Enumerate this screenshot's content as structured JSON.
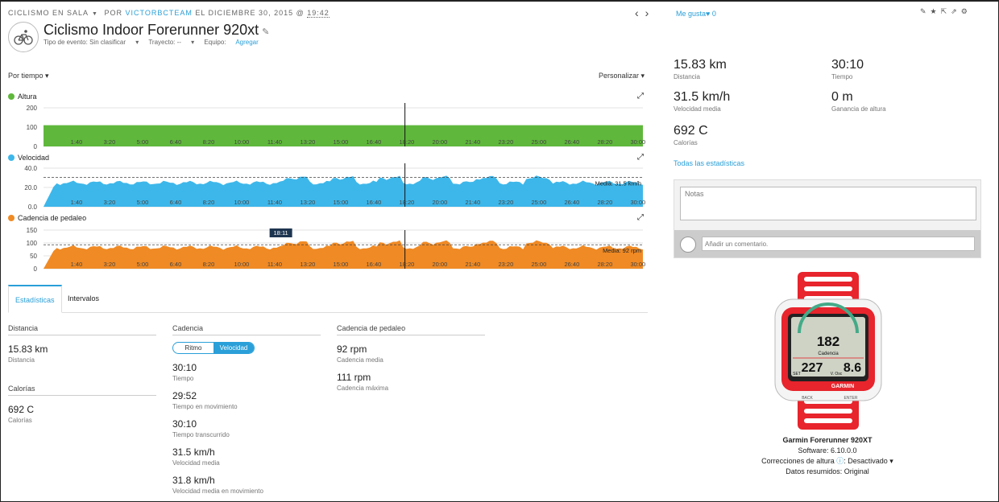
{
  "header": {
    "activity_type": "CICLISMO EN SALA",
    "by": "POR",
    "user": "VICTORBCTEAM",
    "date_text": "EL DICIEMBRE 30, 2015 @",
    "time": "19:42",
    "title": "Ciclismo Indoor Forerunner 920xt",
    "event_type": "Tipo de evento: Sin clasificar",
    "route": "Trayecto: --",
    "equipment_label": "Equipo:",
    "equipment_link": "Agregar"
  },
  "charts_controls": {
    "por_tiempo": "Por tiempo",
    "personalizar": "Personalizar"
  },
  "charts": {
    "time_labels": [
      "1:40",
      "3:20",
      "5:00",
      "6:40",
      "8:20",
      "10:00",
      "11:40",
      "13:20",
      "15:00",
      "16:40",
      "18:20",
      "20:00",
      "21:40",
      "23:20",
      "25:00",
      "26:40",
      "28:20",
      "30:00"
    ],
    "cursor_time": "18:11",
    "altura": {
      "label": "Altura",
      "color": "#5fb83b",
      "yticks": [
        "200",
        "100",
        "0"
      ]
    },
    "velocidad": {
      "label": "Velocidad",
      "color": "#3db7ea",
      "yticks": [
        "40.0",
        "20.0",
        "0.0"
      ],
      "average_label": "Media: 31.5 km/h"
    },
    "cadencia": {
      "label": "Cadencia de pedaleo",
      "color": "#f08a24",
      "yticks": [
        "150",
        "100",
        "50",
        "0"
      ],
      "average_label": "Media: 92 rpm"
    }
  },
  "tabs": [
    "Estadísticas",
    "Intervalos"
  ],
  "stats": {
    "col1": [
      {
        "head": "Distancia",
        "value": "15.83 km",
        "label": "Distancia"
      },
      {
        "head": "Calorías",
        "value": "692 C",
        "label": "Calorías"
      }
    ],
    "col2": {
      "head": "Cadencia",
      "toggle": [
        "Ritmo",
        "Velocidad"
      ],
      "items": [
        {
          "value": "30:10",
          "label": "Tiempo"
        },
        {
          "value": "29:52",
          "label": "Tiempo en movimiento"
        },
        {
          "value": "30:10",
          "label": "Tiempo transcurrido"
        },
        {
          "value": "31.5 km/h",
          "label": "Velocidad media"
        },
        {
          "value": "31.8 km/h",
          "label": "Velocidad media en movimiento"
        }
      ]
    },
    "col3": {
      "head": "Cadencia de pedaleo",
      "items": [
        {
          "value": "92 rpm",
          "label": "Cadencia media"
        },
        {
          "value": "111 rpm",
          "label": "Cadencia máxima"
        }
      ]
    }
  },
  "right": {
    "like_label": "Me gusta",
    "like_count": "0",
    "summary": [
      {
        "value": "15.83 km",
        "label": "Distancia"
      },
      {
        "value": "30:10",
        "label": "Tiempo"
      },
      {
        "value": "31.5 km/h",
        "label": "Velocidad media"
      },
      {
        "value": "0 m",
        "label": "Ganancia de altura"
      },
      {
        "value": "692 C",
        "label": "Calorías"
      }
    ],
    "all_stats": "Todas las estadísticas",
    "notes_placeholder": "Notas",
    "comment_placeholder": "Añadir un comentario.",
    "device": {
      "name": "Garmin Forerunner 920XT",
      "software": "Software: 6.10.0.0",
      "elev_label": "Correcciones de altura",
      "elev_value": "Desactivado",
      "data": "Datos resumidos: Original",
      "screen_top": "182",
      "screen_label": "Cadencia",
      "screen_left": "227",
      "screen_right": "8.6",
      "screen_small_left": "SET",
      "screen_small_right": "V. Osc",
      "brand": "GARMIN",
      "btn_back": "BACK",
      "btn_enter": "ENTER"
    }
  }
}
